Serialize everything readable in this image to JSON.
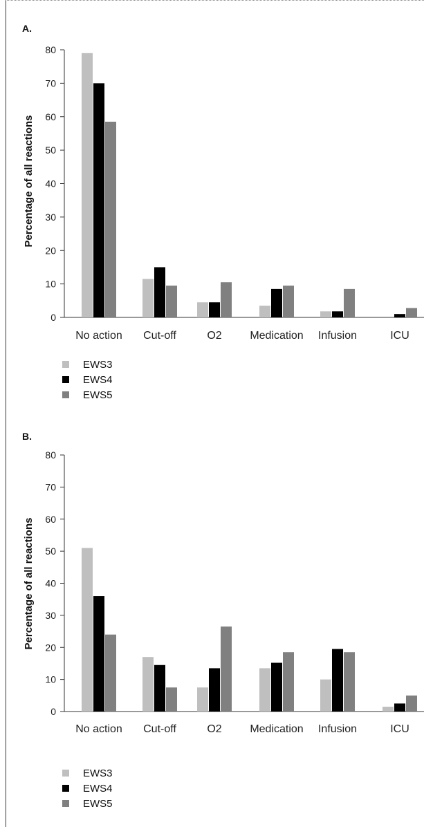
{
  "colors": {
    "EWS3": "#bfbfbf",
    "EWS4": "#000000",
    "EWS5": "#808080",
    "axis": "#333333"
  },
  "chart_data": [
    {
      "panel_label": "A.",
      "type": "bar",
      "categories": [
        "No action",
        "Cut-off",
        "O2",
        "Medication",
        "Infusion",
        "ICU"
      ],
      "series": [
        {
          "name": "EWS3",
          "values": [
            79,
            11.5,
            4.5,
            3.5,
            1.8,
            0
          ]
        },
        {
          "name": "EWS4",
          "values": [
            70,
            15,
            4.5,
            8.5,
            1.8,
            1
          ]
        },
        {
          "name": "EWS5",
          "values": [
            58.5,
            9.5,
            10.5,
            9.5,
            8.5,
            2.8
          ]
        }
      ],
      "ylabel": "Percentage of all reactions",
      "ylim": [
        0,
        80
      ],
      "yticks": [
        "0",
        "10",
        "20",
        "30",
        "40",
        "50",
        "60",
        "70",
        "80"
      ],
      "legend": [
        "EWS3",
        "EWS4",
        "EWS5"
      ]
    },
    {
      "panel_label": "B.",
      "type": "bar",
      "categories": [
        "No action",
        "Cut-off",
        "O2",
        "Medication",
        "Infusion",
        "ICU"
      ],
      "series": [
        {
          "name": "EWS3",
          "values": [
            51,
            17,
            7.5,
            13.5,
            10,
            1.5
          ]
        },
        {
          "name": "EWS4",
          "values": [
            36,
            14.5,
            13.5,
            15.2,
            19.5,
            2.5
          ]
        },
        {
          "name": "EWS5",
          "values": [
            24,
            7.5,
            26.5,
            18.5,
            18.5,
            5
          ]
        }
      ],
      "ylabel": "Percentage of all reactions",
      "ylim": [
        0,
        80
      ],
      "yticks": [
        "0",
        "10",
        "20",
        "30",
        "40",
        "50",
        "60",
        "70",
        "80"
      ],
      "legend": [
        "EWS3",
        "EWS4",
        "EWS5"
      ]
    }
  ]
}
